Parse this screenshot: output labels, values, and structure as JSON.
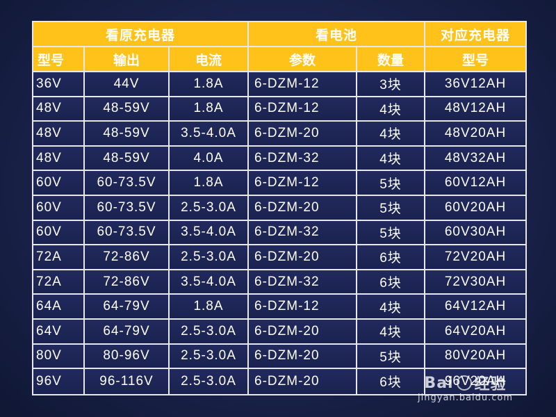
{
  "table": {
    "group_headers": [
      "看原充电器",
      "看电池",
      "对应充电器"
    ],
    "column_headers": [
      "型号",
      "输出",
      "电流",
      "参数",
      "数量",
      "型号"
    ],
    "rows": [
      [
        "36V",
        "44V",
        "1.8A",
        "6-DZM-12",
        "3块",
        "36V12AH"
      ],
      [
        "48V",
        "48-59V",
        "1.8A",
        "6-DZM-12",
        "4块",
        "48V12AH"
      ],
      [
        "48V",
        "48-59V",
        "3.5-4.0A",
        "6-DZM-20",
        "4块",
        "48V20AH"
      ],
      [
        "48V",
        "48-59V",
        "4.0A",
        "6-DZM-32",
        "4块",
        "48V32AH"
      ],
      [
        "60V",
        "60-73.5V",
        "1.8A",
        "6-DZM-12",
        "5块",
        "60V12AH"
      ],
      [
        "60V",
        "60-73.5V",
        "2.5-3.0A",
        "6-DZM-20",
        "5块",
        "60V20AH"
      ],
      [
        "60V",
        "60-73.5V",
        "3.5-4.0A",
        "6-DZM-32",
        "5块",
        "60V30AH"
      ],
      [
        "72A",
        "72-86V",
        "2.5-3.0A",
        "6-DZM-20",
        "6块",
        "72V20AH"
      ],
      [
        "72A",
        "72-86V",
        "3.5-4.0A",
        "6-DZM-32",
        "6块",
        "72V30AH"
      ],
      [
        "64A",
        "64-79V",
        "1.8A",
        "6-DZM-12",
        "4块",
        "64V12AH"
      ],
      [
        "64V",
        "64-79V",
        "2.5-3.0A",
        "6-DZM-20",
        "4块",
        "64V20AH"
      ],
      [
        "80V",
        "80-96V",
        "2.5-3.0A",
        "6-DZM-20",
        "5块",
        "80V20AH"
      ],
      [
        "96V",
        "96-116V",
        "2.5-3.0A",
        "6-DZM-20",
        "6块",
        "96V20AH"
      ]
    ]
  },
  "watermark": {
    "logo_text_left": "Bai",
    "logo_text_right": "经验",
    "url": "jingyan.baidu.com"
  },
  "colors": {
    "header_bg": "#ffc21a",
    "cell_bg": "#1e265a",
    "grid_line": "#e8e8e8",
    "page_bg": "#1c2550"
  }
}
